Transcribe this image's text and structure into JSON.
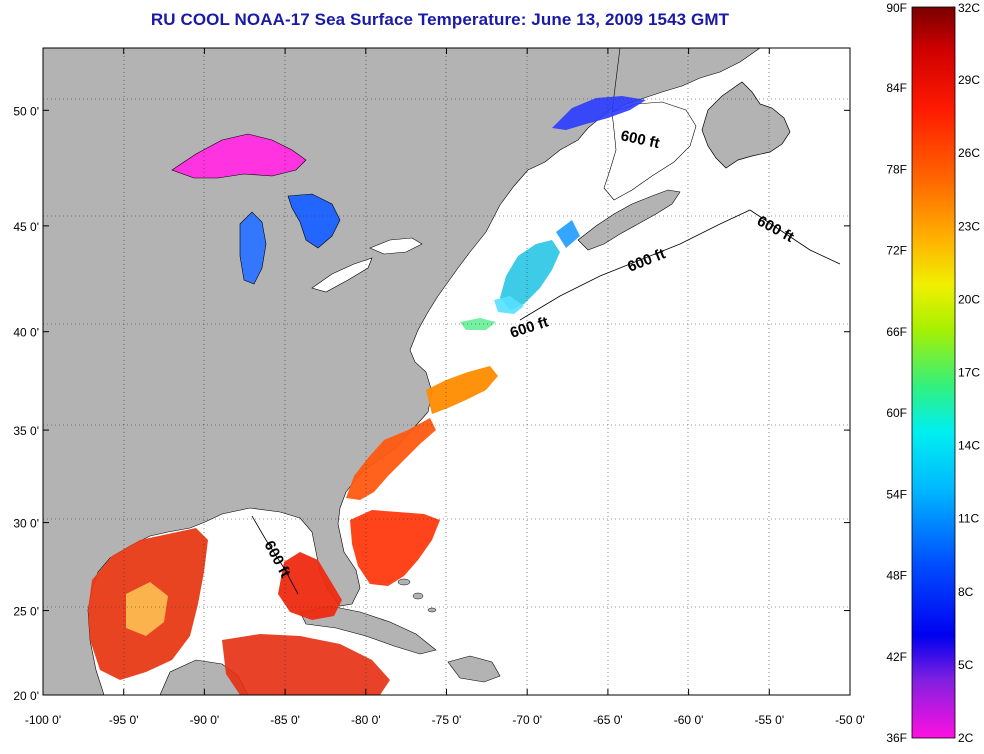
{
  "title": "RU COOL  NOAA-17  Sea Surface Temperature:  June 13, 2009 1543 GMT",
  "colors": {
    "land": "#b3b3b3",
    "ocean_missing": "#ffffff",
    "title": "#1a1aa6"
  },
  "map": {
    "lon_range": [
      -100,
      -50
    ],
    "lat_range": [
      20,
      52.5
    ],
    "lon_ticks": [
      {
        "value": -100,
        "label": "-100 0'"
      },
      {
        "value": -95,
        "label": "-95 0'"
      },
      {
        "value": -90,
        "label": "-90 0'"
      },
      {
        "value": -85,
        "label": "-85 0'"
      },
      {
        "value": -80,
        "label": "-80 0'"
      },
      {
        "value": -75,
        "label": "-75 0'"
      },
      {
        "value": -70,
        "label": "-70 0'"
      },
      {
        "value": -65,
        "label": "-65 0'"
      },
      {
        "value": -60,
        "label": "-60 0'"
      },
      {
        "value": -55,
        "label": "-55 0'"
      },
      {
        "value": -50,
        "label": "-50 0'"
      }
    ],
    "lat_ticks": [
      {
        "value": 20,
        "label": "20 0'"
      },
      {
        "value": 25,
        "label": "25 0'"
      },
      {
        "value": 30,
        "label": "30 0'"
      },
      {
        "value": 35,
        "label": "35 0'"
      },
      {
        "value": 40,
        "label": "40 0'"
      },
      {
        "value": 45,
        "label": "45 0'"
      },
      {
        "value": 50,
        "label": "50 0'"
      }
    ],
    "isobath_labels": [
      "600 ft",
      "600 ft",
      "600 ft",
      "600 ft",
      "600 ft"
    ]
  },
  "colorbar": {
    "fahrenheit_labels": [
      "90F",
      "84F",
      "78F",
      "72F",
      "66F",
      "60F",
      "54F",
      "48F",
      "42F",
      "36F"
    ],
    "celsius_labels": [
      "32C",
      "29C",
      "26C",
      "23C",
      "20C",
      "17C",
      "14C",
      "11C",
      "8C",
      "5C",
      "2C"
    ]
  }
}
